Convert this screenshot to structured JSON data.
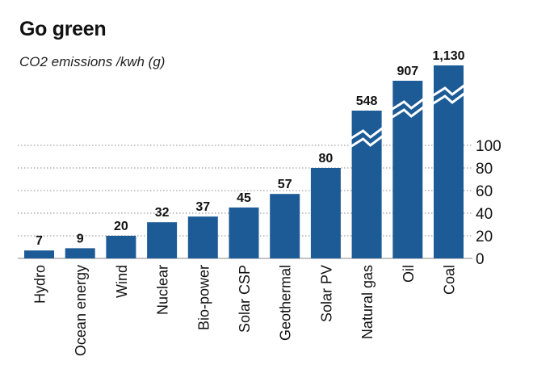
{
  "title": "Go green",
  "subtitle": "CO2 emissions /kwh (g)",
  "colors": {
    "bar": "#1d5b96",
    "grid": "#8a8a8a",
    "text": "#111111",
    "break": "#ffffff"
  },
  "chart_data": {
    "type": "bar",
    "title": "Go green",
    "subtitle": "CO2 emissions /kwh (g)",
    "categories": [
      "Hydro",
      "Ocean energy",
      "Wind",
      "Nuclear",
      "Bio-power",
      "Solar CSP",
      "Geothermal",
      "Solar PV",
      "Natural gas",
      "Oil",
      "Coal"
    ],
    "values": [
      7,
      9,
      20,
      32,
      37,
      45,
      57,
      80,
      548,
      907,
      1130
    ],
    "value_labels": [
      "7",
      "9",
      "20",
      "32",
      "37",
      "45",
      "57",
      "80",
      "548",
      "907",
      "1,130"
    ],
    "axis_break": [
      false,
      false,
      false,
      false,
      false,
      false,
      false,
      false,
      true,
      true,
      true
    ],
    "yticks": [
      0,
      20,
      40,
      60,
      80,
      100
    ],
    "ylim": [
      0,
      100
    ],
    "ylabel": "",
    "xlabel": "",
    "grid": true,
    "y_axis_side": "right"
  }
}
